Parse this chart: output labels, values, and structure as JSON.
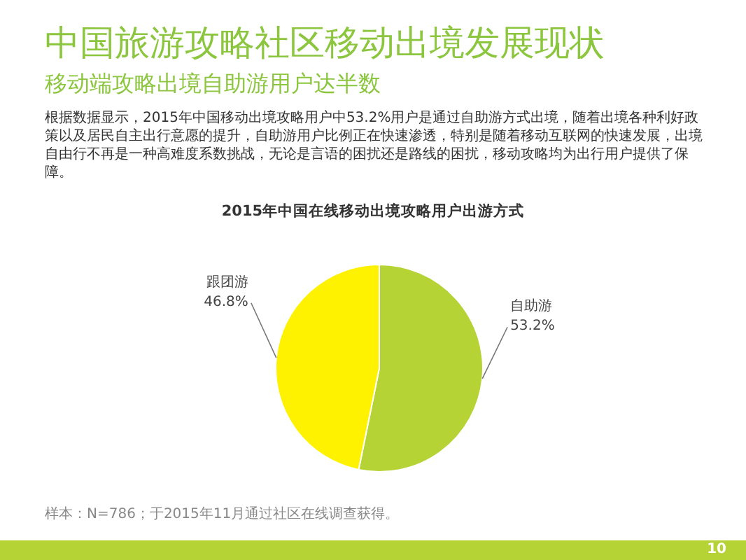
{
  "chart_data": {
    "type": "pie",
    "title": "中国旅游攻略社区移动出境发展现状",
    "subtitle": "移动端攻略出境自助游用户达半数",
    "annotations": [
      "根据数据显示，2015年中国移动出境攻略用户中53.2%用户是通过自助游方式出境，随着出境各种利好政策以及居民自主出行意愿的提升，自助游用户比例正在快速渗透，特别是随着移动互联网的快速发展，出境自由行不再是一种高难度系数挑战，无论是言语的困扰还是路线的困扰，移动攻略均为出行用户提供了保障。",
      "2015年中国在线移动出境攻略用户出游方式",
      "样本：N=786；于2015年11月通过社区在线调查获得。",
      "10"
    ],
    "categories": [
      "自助游",
      "跟团游"
    ],
    "values": [
      53.2,
      46.8
    ],
    "value_labels": [
      "53.2%",
      "46.8%"
    ],
    "colors": [
      "#b5d334",
      "#fff200"
    ]
  }
}
